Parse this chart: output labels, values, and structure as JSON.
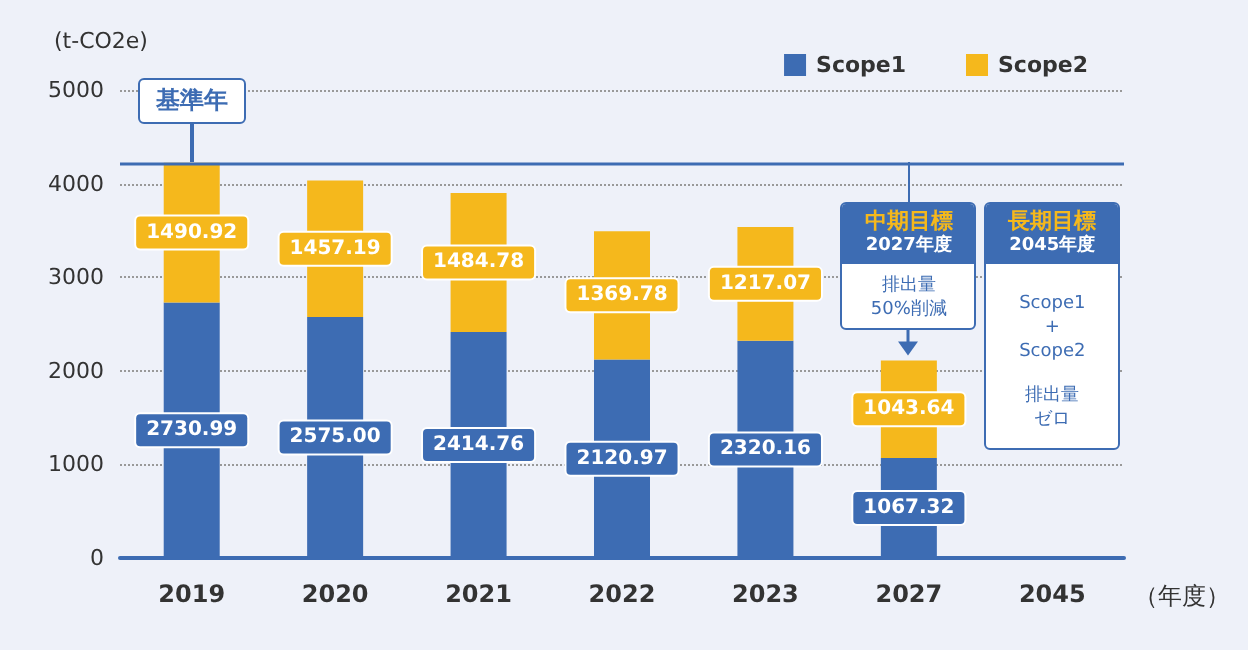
{
  "chart_data": {
    "type": "bar",
    "stacked": true,
    "ylabel": "(t-CO2e)",
    "xlabel": "（年度）",
    "categories": [
      "2019",
      "2020",
      "2021",
      "2022",
      "2023",
      "2027",
      "2045"
    ],
    "series": [
      {
        "name": "Scope1",
        "color": "#3d6cb3",
        "values": [
          2730.99,
          2575.0,
          2414.76,
          2120.97,
          2320.16,
          1067.32,
          null
        ],
        "value_labels": [
          "2730.99",
          "2575.00",
          "2414.76",
          "2120.97",
          "2320.16",
          "1067.32",
          null
        ]
      },
      {
        "name": "Scope2",
        "color": "#f5b81c",
        "values": [
          1490.92,
          1457.19,
          1484.78,
          1369.78,
          1217.07,
          1043.64,
          null
        ],
        "value_labels": [
          "1490.92",
          "1457.19",
          "1484.78",
          "1369.78",
          "1217.07",
          "1043.64",
          null
        ]
      }
    ],
    "ylim": [
      0,
      5000
    ],
    "yticks": [
      0,
      1000,
      2000,
      3000,
      4000,
      5000
    ],
    "grid": "y",
    "legend": "top right",
    "ref_lines": [
      {
        "axis": "y",
        "value": 4221.91,
        "label": "基準年",
        "color": "#3d6cb3",
        "line_style": "solid"
      }
    ],
    "annotations": [
      "中期目標",
      "2027年度",
      "排出量",
      "50%削減",
      "長期目標",
      "2045年度",
      "Scope1",
      "+",
      "Scope2",
      "排出量",
      "ゼロ"
    ]
  }
}
